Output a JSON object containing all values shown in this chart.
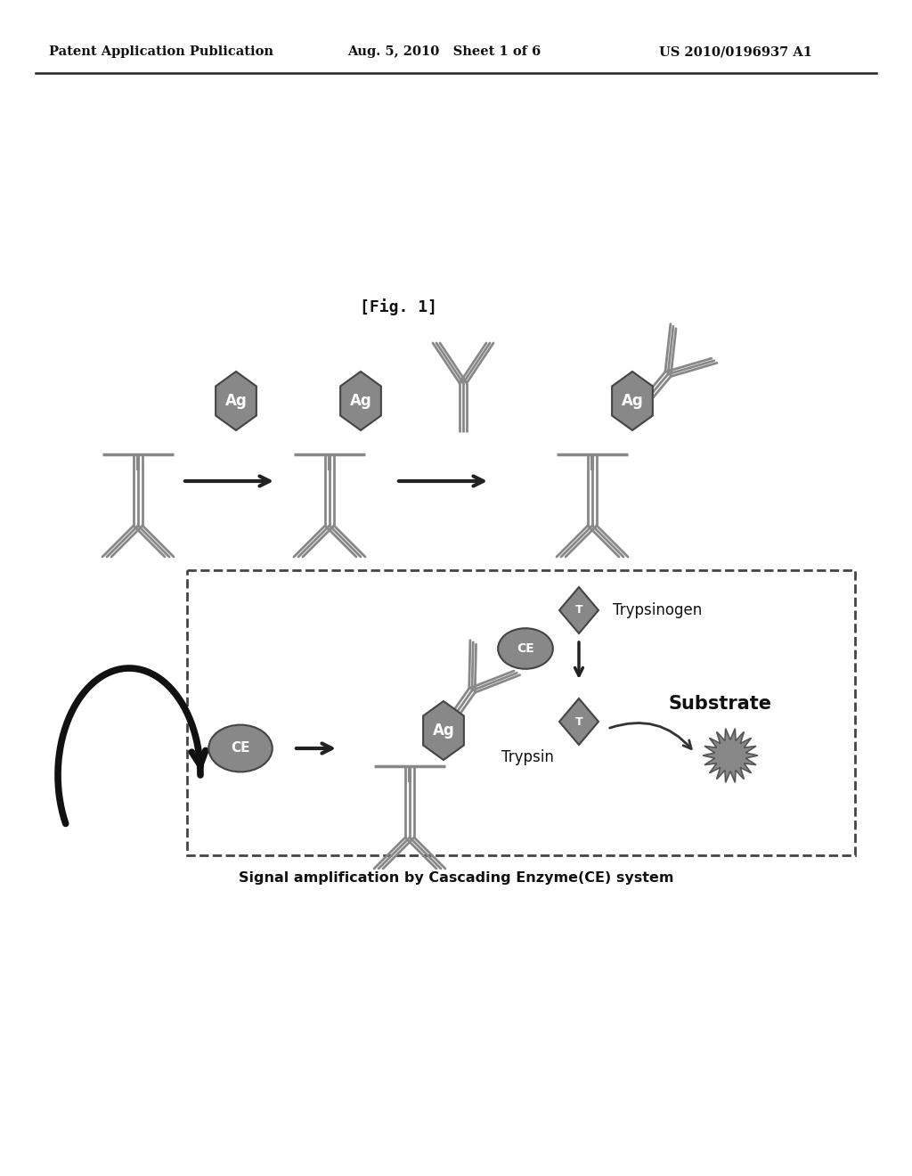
{
  "header_left": "Patent Application Publication",
  "header_mid": "Aug. 5, 2010   Sheet 1 of 6",
  "header_right": "US 2010/0196937 A1",
  "fig_label": "[Fig. 1]",
  "caption": "Signal amplification by Cascading Enzyme(CE) system",
  "bg_color": "#ffffff",
  "text_color": "#111111",
  "gray_dark": "#555555",
  "gray_med": "#888888",
  "gray_light": "#aaaaaa",
  "antibody_color": "#777777",
  "ag_color": "#888888"
}
